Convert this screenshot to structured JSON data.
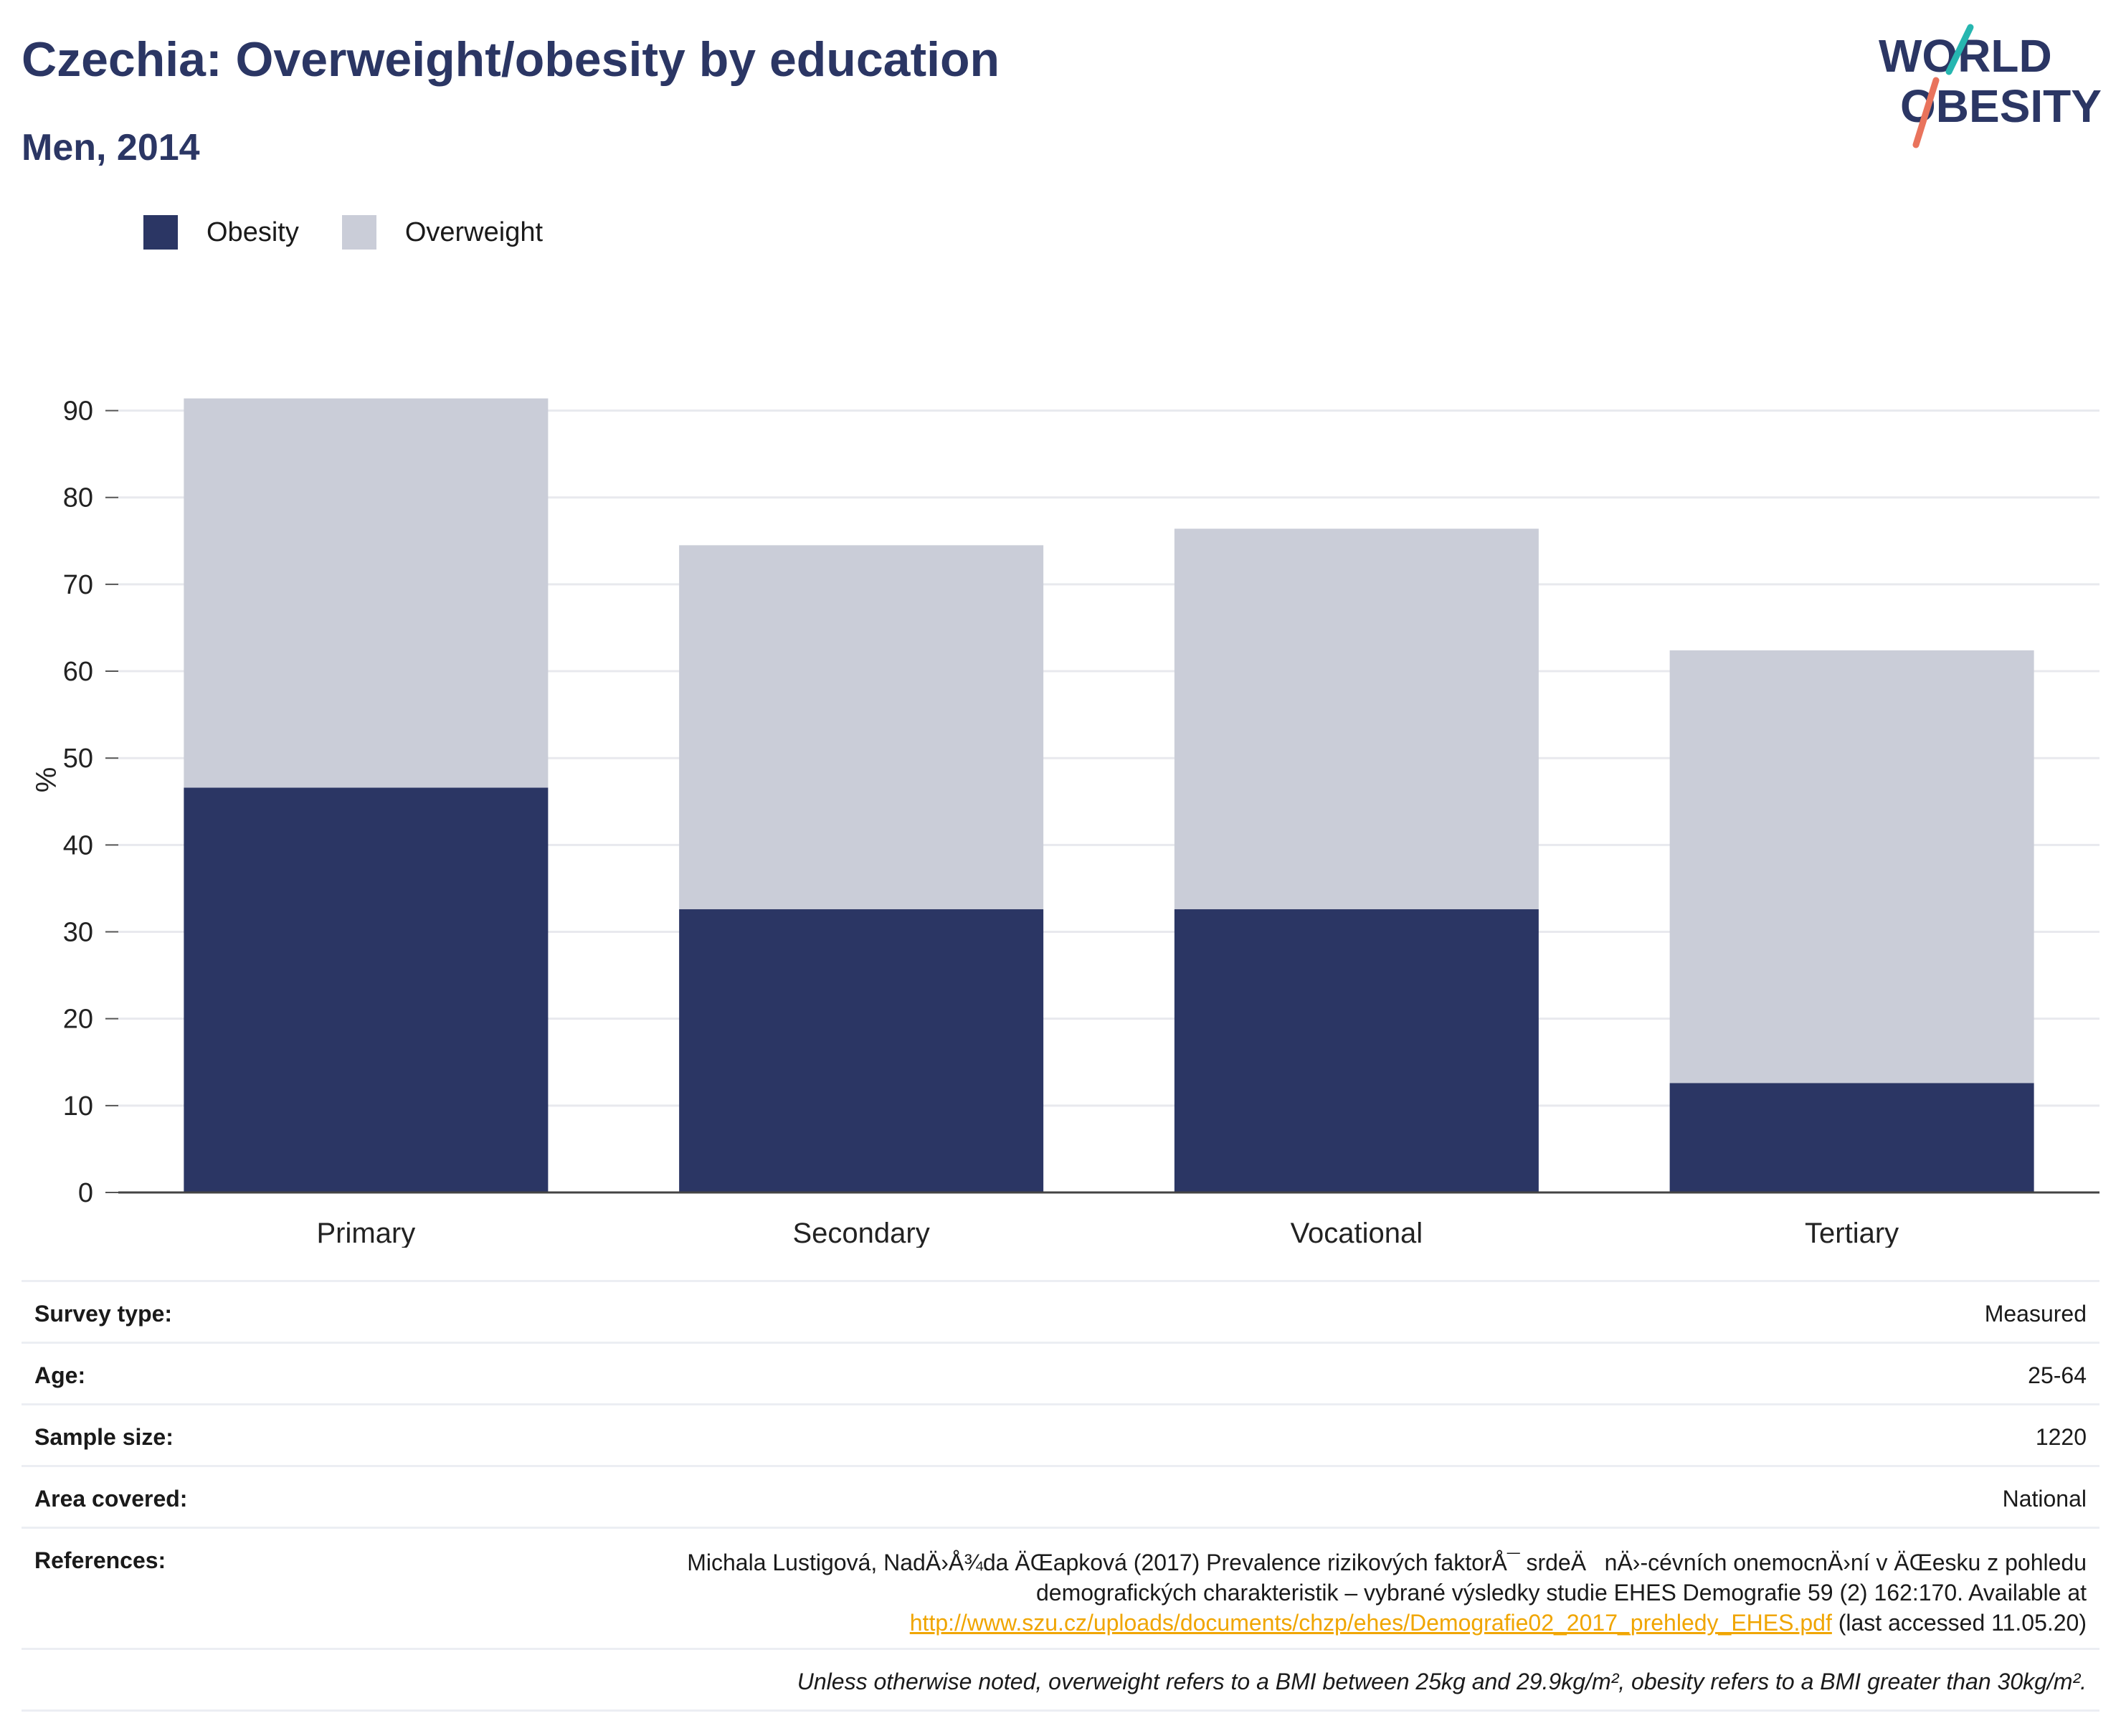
{
  "header": {
    "title": "Czechia: Overweight/obesity by education",
    "subtitle": "Men, 2014",
    "logo_line1": "WORLD",
    "logo_line2": "OBESITY"
  },
  "legend": {
    "items": [
      {
        "label": "Obesity",
        "color": "#2b3664"
      },
      {
        "label": "Overweight",
        "color": "#cacdd8"
      }
    ]
  },
  "chart_data": {
    "type": "bar",
    "stacked": true,
    "categories": [
      "Primary",
      "Secondary",
      "Vocational",
      "Tertiary"
    ],
    "series": [
      {
        "name": "Obesity",
        "color": "#2b3664",
        "values": [
          46.6,
          32.6,
          32.6,
          12.6
        ]
      },
      {
        "name": "Overweight",
        "color": "#cacdd8",
        "values": [
          44.8,
          41.9,
          43.8,
          49.8
        ]
      }
    ],
    "ylabel": "%",
    "yticks": [
      "0",
      "10",
      "20",
      "30",
      "40",
      "50",
      "60",
      "70",
      "80",
      "90"
    ],
    "ylim": [
      0,
      95
    ],
    "grid": true,
    "legend_position": "top-left"
  },
  "info": {
    "rows": [
      {
        "label": "Survey type:",
        "value": "Measured"
      },
      {
        "label": "Age:",
        "value": "25-64"
      },
      {
        "label": "Sample size:",
        "value": "1220"
      },
      {
        "label": "Area covered:",
        "value": "National"
      }
    ],
    "references_label": "References:",
    "references_line1": "Michala Lustigová, NadÄ›Å¾da ÄŒapková (2017) Prevalence rizikových faktorÅ¯ srdeÄnÄ›-cévních onemocnÄ›ní v ÄŒesku z pohledu",
    "references_line2": "demografických charakteristik – vybrané výsledky studie EHES Demografie 59 (2) 162:170. Available at",
    "references_link": "http://www.szu.cz/uploads/documents/chzp/ehes/Demografie02_2017_prehledy_EHES.pdf",
    "references_tail": " (last accessed 11.05.20)",
    "note": "Unless otherwise noted, overweight refers to a BMI between 25kg and 29.9kg/m², obesity refers to a BMI greater than 30kg/m²."
  }
}
